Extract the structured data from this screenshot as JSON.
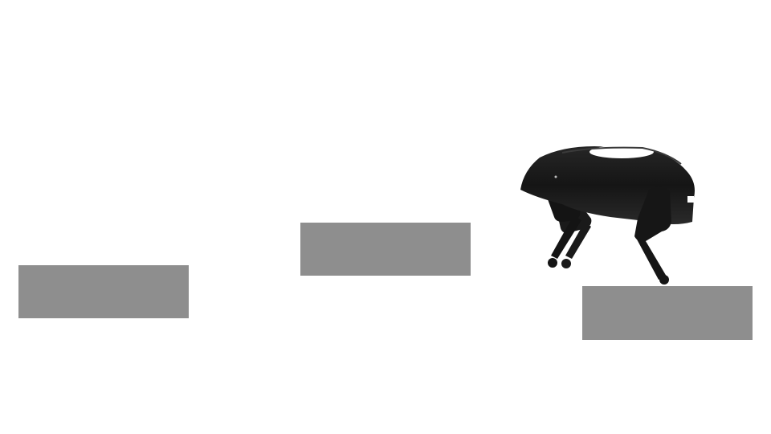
{
  "scene": {
    "description_type": "simulation-render",
    "colors": {
      "background": "#ffffff",
      "platform": "#8e8e8e",
      "robot_body": "#1c1c1c",
      "robot_highlight": "#ffffff"
    },
    "objects": [
      {
        "name": "platform",
        "count": 3
      },
      {
        "name": "quadruped-robot",
        "count": 1
      }
    ]
  }
}
